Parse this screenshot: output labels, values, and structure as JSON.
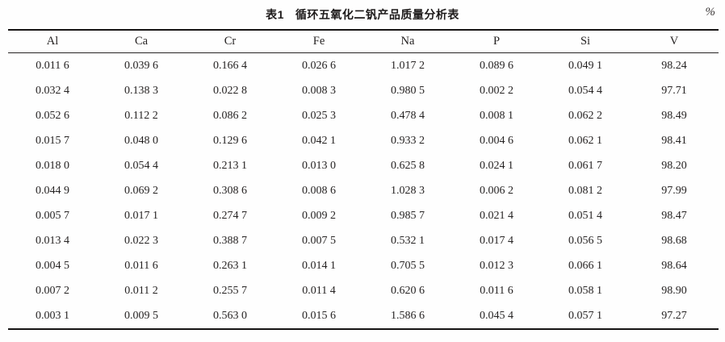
{
  "page": {
    "unit_label": "%"
  },
  "title": {
    "tag": "表1",
    "text": "循环五氧化二钒产品质量分析表"
  },
  "table": {
    "columns": [
      "Al",
      "Ca",
      "Cr",
      "Fe",
      "Na",
      "P",
      "Si",
      "V"
    ],
    "rows": [
      [
        "0.011 6",
        "0.039 6",
        "0.166 4",
        "0.026 6",
        "1.017 2",
        "0.089 6",
        "0.049 1",
        "98.24"
      ],
      [
        "0.032 4",
        "0.138 3",
        "0.022 8",
        "0.008 3",
        "0.980 5",
        "0.002 2",
        "0.054 4",
        "97.71"
      ],
      [
        "0.052 6",
        "0.112 2",
        "0.086 2",
        "0.025 3",
        "0.478 4",
        "0.008 1",
        "0.062 2",
        "98.49"
      ],
      [
        "0.015 7",
        "0.048 0",
        "0.129 6",
        "0.042 1",
        "0.933 2",
        "0.004 6",
        "0.062 1",
        "98.41"
      ],
      [
        "0.018 0",
        "0.054 4",
        "0.213 1",
        "0.013 0",
        "0.625 8",
        "0.024 1",
        "0.061 7",
        "98.20"
      ],
      [
        "0.044 9",
        "0.069 2",
        "0.308 6",
        "0.008 6",
        "1.028 3",
        "0.006 2",
        "0.081 2",
        "97.99"
      ],
      [
        "0.005 7",
        "0.017 1",
        "0.274 7",
        "0.009 2",
        "0.985 7",
        "0.021 4",
        "0.051 4",
        "98.47"
      ],
      [
        "0.013 4",
        "0.022 3",
        "0.388 7",
        "0.007 5",
        "0.532 1",
        "0.017 4",
        "0.056 5",
        "98.68"
      ],
      [
        "0.004 5",
        "0.011 6",
        "0.263 1",
        "0.014 1",
        "0.705 5",
        "0.012 3",
        "0.066 1",
        "98.64"
      ],
      [
        "0.007 2",
        "0.011 2",
        "0.255 7",
        "0.011 4",
        "0.620 6",
        "0.011 6",
        "0.058 1",
        "98.90"
      ],
      [
        "0.003 1",
        "0.009 5",
        "0.563 0",
        "0.015 6",
        "1.586 6",
        "0.045 4",
        "0.057 1",
        "97.27"
      ]
    ]
  },
  "colors": {
    "rule": "#161414",
    "text": "#262323",
    "background": "#fefefe"
  }
}
